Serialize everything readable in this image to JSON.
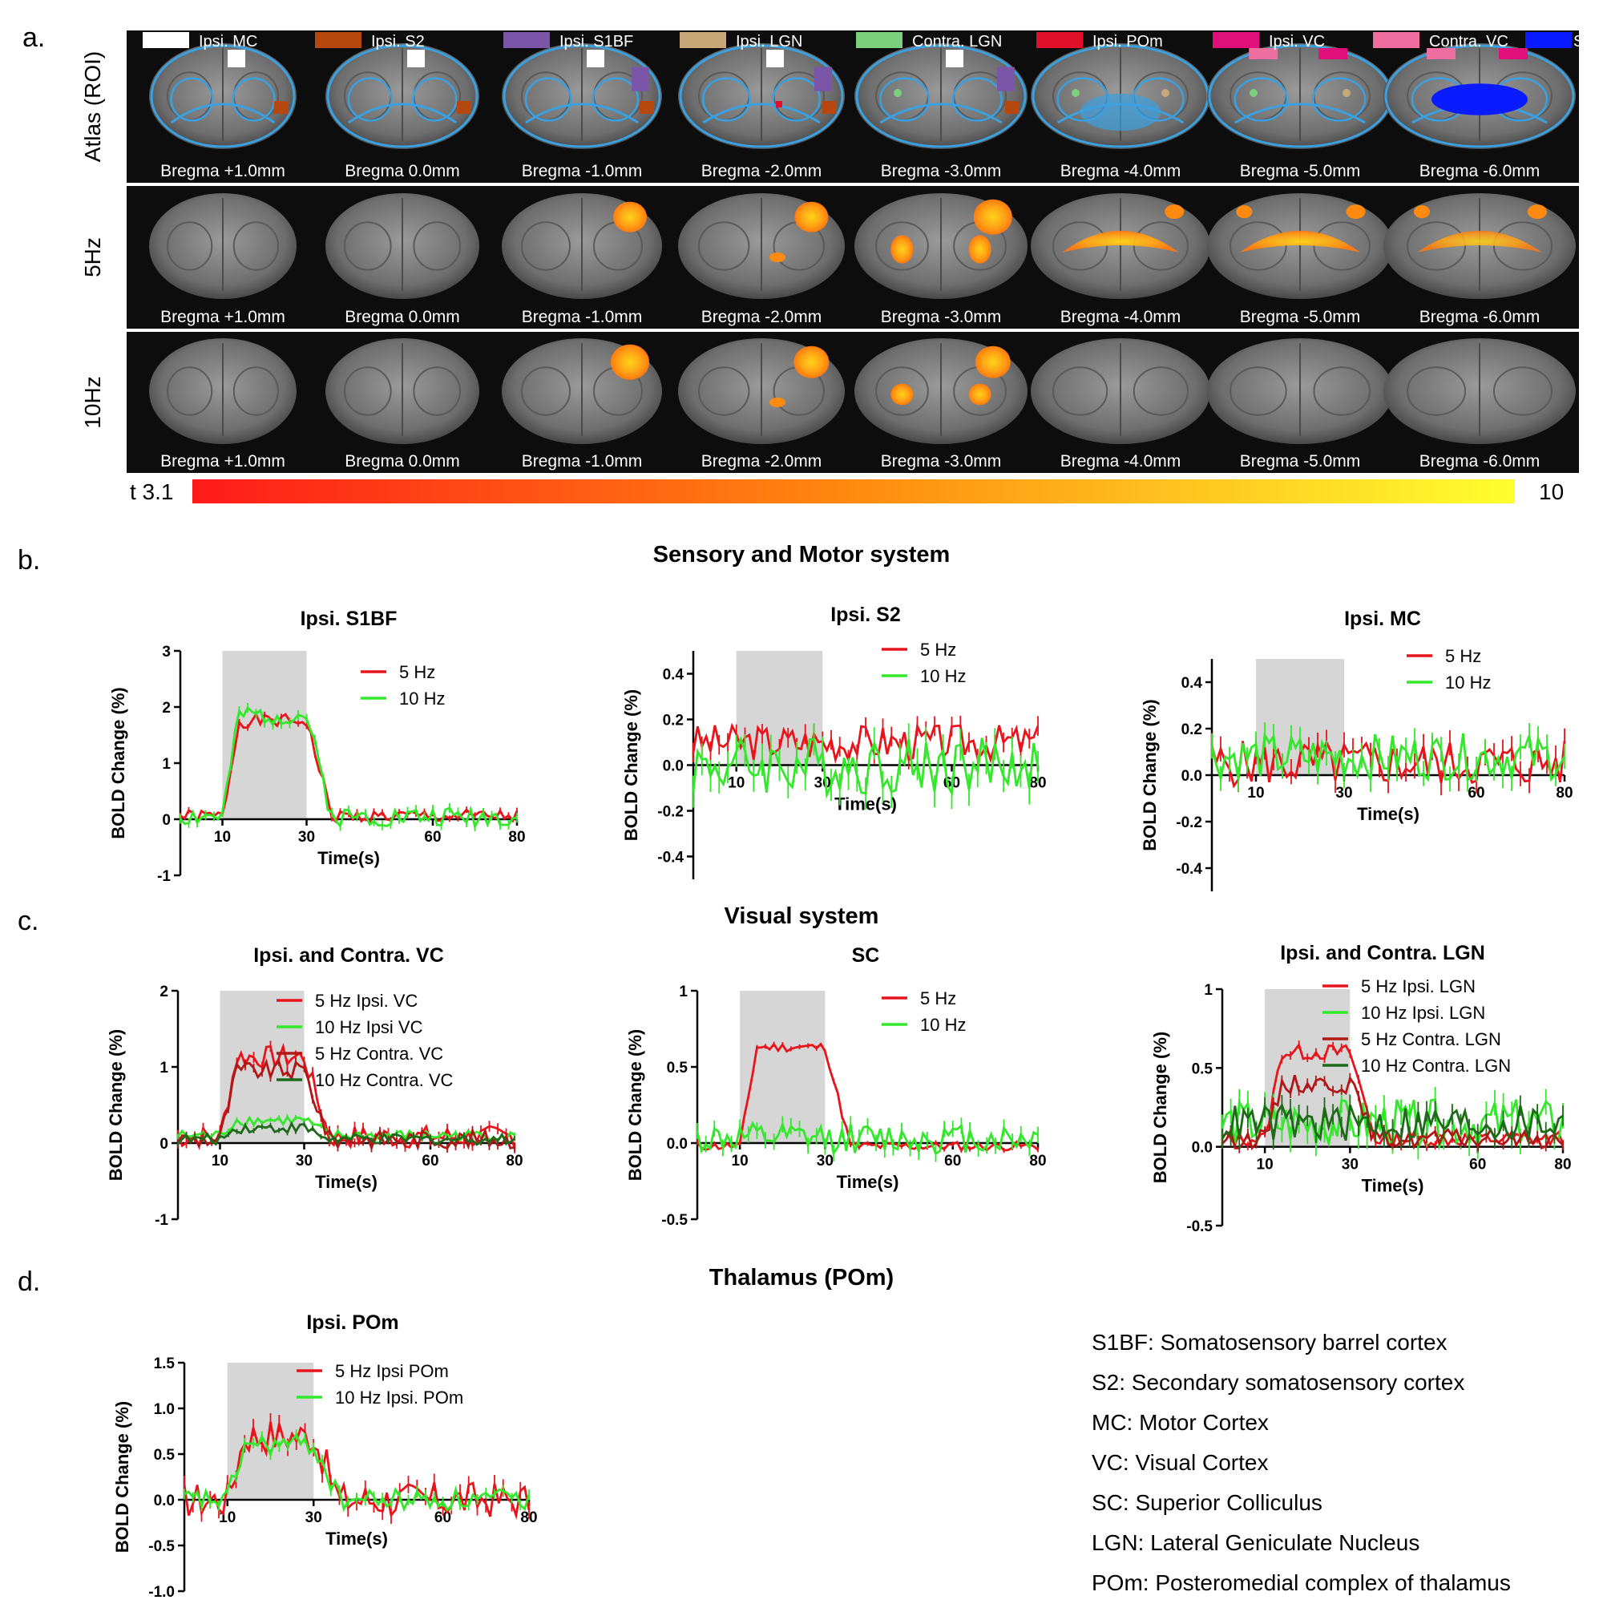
{
  "panel_letters": {
    "a": "a.",
    "b": "b.",
    "c": "c.",
    "d": "d."
  },
  "atlas_legend": [
    {
      "label": "Ipsi. MC",
      "color": "#ffffff"
    },
    {
      "label": "Ipsi. S2",
      "color": "#b5470f"
    },
    {
      "label": "Ipsi. S1BF",
      "color": "#7a55a8"
    },
    {
      "label": "Ipsi. LGN",
      "color": "#c8a878"
    },
    {
      "label": "Contra. LGN",
      "color": "#7ccf7c"
    },
    {
      "label": "Ipsi. POm",
      "color": "#e0102a"
    },
    {
      "label": "Ipsi. VC",
      "color": "#e0107a"
    },
    {
      "label": "Contra. VC",
      "color": "#ee6ea0"
    },
    {
      "label": "SC",
      "color": "#0a1cff"
    }
  ],
  "image_rows": [
    {
      "label": "Atlas (ROI)",
      "kind": "atlas"
    },
    {
      "label": "5Hz",
      "kind": "activation",
      "intensity": [
        0,
        0,
        0.5,
        0.5,
        0.8,
        1,
        1,
        0.9
      ]
    },
    {
      "label": "10Hz",
      "kind": "activation",
      "intensity": [
        0,
        0,
        0.8,
        0.6,
        0.6,
        0,
        0,
        0
      ]
    }
  ],
  "bregma_labels": [
    "Bregma +1.0mm",
    "Bregma 0.0mm",
    "Bregma -1.0mm",
    "Bregma -2.0mm",
    "Bregma -3.0mm",
    "Bregma -4.0mm",
    "Bregma -5.0mm",
    "Bregma -6.0mm"
  ],
  "colorbar": {
    "min_label": "t 3.1",
    "max_label": "10",
    "low_color": "#ff1a1a",
    "high_color": "#ffff30"
  },
  "section_titles": {
    "b": "Sensory and Motor system",
    "c": "Visual system",
    "d": "Thalamus (POm)"
  },
  "chart_data": [
    {
      "id": "s1bf",
      "type": "line",
      "title": "Ipsi. S1BF",
      "xlabel": "Time(s)",
      "ylabel": "BOLD Change (%)",
      "xlim": [
        0,
        80
      ],
      "ylim": [
        -1,
        3
      ],
      "yticks": [
        -1,
        0,
        1,
        2,
        3
      ],
      "ytick_labels": [
        "-1",
        "0",
        "1",
        "2",
        "3"
      ],
      "xticks": [
        10,
        30,
        60,
        80
      ],
      "xtick_labels": [
        "10",
        "30",
        "60",
        "80"
      ],
      "stim": [
        10,
        30
      ],
      "series": [
        {
          "name": "5 Hz",
          "color": "#e8141c",
          "shape": "box",
          "amp": 1.7,
          "noise": 0.12,
          "base": 0.05,
          "seed": 1
        },
        {
          "name": "10 Hz",
          "color": "#33e82a",
          "shape": "box",
          "amp": 1.8,
          "noise": 0.18,
          "base": 0.05,
          "seed": 2
        }
      ]
    },
    {
      "id": "s2",
      "type": "line",
      "title": "Ipsi. S2",
      "xlabel": "Time(s)",
      "ylabel": "BOLD Change (%)",
      "xlim": [
        0,
        80
      ],
      "ylim": [
        -0.5,
        0.5
      ],
      "yticks": [
        -0.4,
        -0.2,
        0,
        0.2,
        0.4
      ],
      "ytick_labels": [
        "-0.4",
        "-0.2",
        "0.0",
        "0.2",
        "0.4"
      ],
      "xticks": [
        10,
        30,
        60,
        80
      ],
      "xtick_labels": [
        "10",
        "30",
        "60",
        "80"
      ],
      "stim": [
        10,
        30
      ],
      "series": [
        {
          "name": "5 Hz",
          "color": "#e8141c",
          "shape": "flat",
          "amp": 0,
          "noise": 0.08,
          "base": 0.1,
          "seed": 3
        },
        {
          "name": "10 Hz",
          "color": "#33e82a",
          "shape": "flat",
          "amp": 0,
          "noise": 0.13,
          "base": 0.0,
          "seed": 4
        }
      ]
    },
    {
      "id": "mc",
      "type": "line",
      "title": "Ipsi. MC",
      "xlabel": "Time(s)",
      "ylabel": "BOLD Change (%)",
      "xlim": [
        0,
        80
      ],
      "ylim": [
        -0.5,
        0.5
      ],
      "yticks": [
        -0.4,
        -0.2,
        0,
        0.2,
        0.4
      ],
      "ytick_labels": [
        "-0.4",
        "-0.2",
        "0.0",
        "0.2",
        "0.4"
      ],
      "xticks": [
        10,
        30,
        60,
        80
      ],
      "xtick_labels": [
        "10",
        "30",
        "60",
        "80"
      ],
      "stim": [
        10,
        30
      ],
      "series": [
        {
          "name": "5 Hz",
          "color": "#e8141c",
          "shape": "flat",
          "amp": 0,
          "noise": 0.1,
          "base": 0.05,
          "seed": 5
        },
        {
          "name": "10 Hz",
          "color": "#33e82a",
          "shape": "flat",
          "amp": 0,
          "noise": 0.1,
          "base": 0.08,
          "seed": 6
        }
      ]
    },
    {
      "id": "vc",
      "type": "line",
      "title": "Ipsi. and Contra. VC",
      "xlabel": "Time(s)",
      "ylabel": "BOLD Change (%)",
      "xlim": [
        0,
        80
      ],
      "ylim": [
        -1,
        2
      ],
      "yticks": [
        -1,
        0,
        1,
        2
      ],
      "ytick_labels": [
        "-1",
        "0",
        "1",
        "2"
      ],
      "xticks": [
        10,
        30,
        60,
        80
      ],
      "xtick_labels": [
        "10",
        "30",
        "60",
        "80"
      ],
      "stim": [
        10,
        30
      ],
      "series": [
        {
          "name": "5 Hz Ipsi. VC",
          "color": "#e8141c",
          "shape": "box",
          "amp": 1.05,
          "noise": 0.15,
          "base": 0.08,
          "seed": 7
        },
        {
          "name": "10 Hz Ipsi VC",
          "color": "#33e82a",
          "shape": "box",
          "amp": 0.2,
          "noise": 0.07,
          "base": 0.1,
          "seed": 8
        },
        {
          "name": "5 Hz Contra. VC",
          "color": "#b01818",
          "shape": "box",
          "amp": 0.9,
          "noise": 0.12,
          "base": 0.05,
          "seed": 9
        },
        {
          "name": "10 Hz Contra. VC",
          "color": "#1f6a1a",
          "shape": "box",
          "amp": 0.15,
          "noise": 0.07,
          "base": 0.05,
          "seed": 10
        }
      ]
    },
    {
      "id": "sc",
      "type": "line",
      "title": "SC",
      "xlabel": "Time(s)",
      "ylabel": "BOLD Change (%)",
      "xlim": [
        0,
        80
      ],
      "ylim": [
        -0.5,
        1
      ],
      "yticks": [
        -0.5,
        0,
        0.5,
        1
      ],
      "ytick_labels": [
        "-0.5",
        "0.0",
        "0.5",
        "1"
      ],
      "xticks": [
        10,
        30,
        60,
        80
      ],
      "xtick_labels": [
        "10",
        "30",
        "60",
        "80"
      ],
      "stim": [
        10,
        30
      ],
      "series": [
        {
          "name": "5 Hz",
          "color": "#e8141c",
          "shape": "box",
          "amp": 0.65,
          "noise": 0.03,
          "base": -0.02,
          "seed": 11
        },
        {
          "name": "10 Hz",
          "color": "#33e82a",
          "shape": "flat",
          "amp": 0,
          "noise": 0.1,
          "base": 0.03,
          "seed": 12
        }
      ]
    },
    {
      "id": "lgn",
      "type": "line",
      "title": "Ipsi. and Contra. LGN",
      "xlabel": "Time(s)",
      "ylabel": "BOLD Change (%)",
      "xlim": [
        0,
        80
      ],
      "ylim": [
        -0.5,
        1
      ],
      "yticks": [
        -0.5,
        0,
        0.5,
        1
      ],
      "ytick_labels": [
        "-0.5",
        "0.0",
        "0.5",
        "1"
      ],
      "xticks": [
        10,
        30,
        60,
        80
      ],
      "xtick_labels": [
        "10",
        "30",
        "60",
        "80"
      ],
      "stim": [
        10,
        30
      ],
      "series": [
        {
          "name": "5 Hz Ipsi.  LGN",
          "color": "#e8141c",
          "shape": "box",
          "amp": 0.55,
          "noise": 0.05,
          "base": 0.05,
          "seed": 13
        },
        {
          "name": "10 Hz Ipsi. LGN",
          "color": "#33e82a",
          "shape": "flat",
          "amp": 0,
          "noise": 0.15,
          "base": 0.15,
          "seed": 14
        },
        {
          "name": "5 Hz Contra. LGN",
          "color": "#b01818",
          "shape": "box",
          "amp": 0.35,
          "noise": 0.06,
          "base": 0.05,
          "seed": 15
        },
        {
          "name": "10 Hz Contra. LGN",
          "color": "#1f6a1a",
          "shape": "flat",
          "amp": 0,
          "noise": 0.12,
          "base": 0.15,
          "seed": 16
        }
      ]
    },
    {
      "id": "pom",
      "type": "line",
      "title": "Ipsi. POm",
      "xlabel": "Time(s)",
      "ylabel": "BOLD Change (%)",
      "xlim": [
        0,
        80
      ],
      "ylim": [
        -1,
        1.5
      ],
      "yticks": [
        -1,
        -0.5,
        0,
        0.5,
        1,
        1.5
      ],
      "ytick_labels": [
        "-1.0",
        "-0.5",
        "0.0",
        "0.5",
        "1.0",
        "1.5"
      ],
      "xticks": [
        10,
        30,
        60,
        80
      ],
      "xtick_labels": [
        "10",
        "30",
        "60",
        "80"
      ],
      "stim": [
        10,
        30
      ],
      "series": [
        {
          "name": "5 Hz Ipsi POm",
          "color": "#e8141c",
          "shape": "box",
          "amp": 0.7,
          "noise": 0.2,
          "base": 0.0,
          "seed": 17
        },
        {
          "name": "10 Hz Ipsi. POm",
          "color": "#33e82a",
          "shape": "box",
          "amp": 0.6,
          "noise": 0.12,
          "base": 0.0,
          "seed": 18
        }
      ]
    }
  ],
  "abbreviations": [
    "S1BF: Somatosensory barrel cortex",
    "S2: Secondary somatosensory cortex",
    "MC: Motor Cortex",
    "VC: Visual Cortex",
    "SC: Superior Colliculus",
    "LGN: Lateral Geniculate Nucleus",
    "POm: Posteromedial complex of thalamus"
  ]
}
